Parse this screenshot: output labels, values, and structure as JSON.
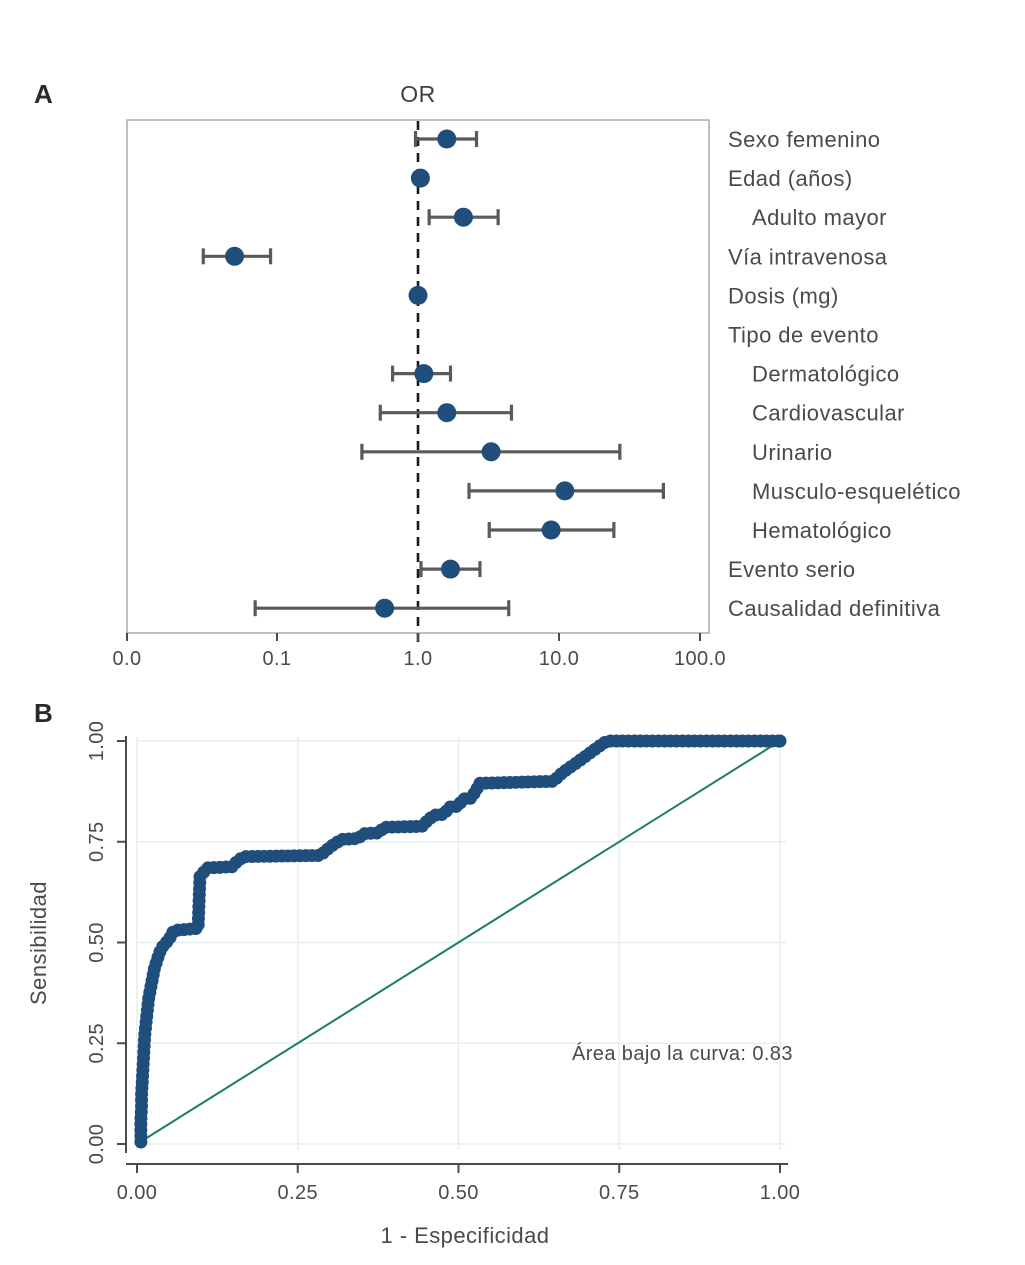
{
  "figure": {
    "description": "Two-panel statistical figure: forest plot of odds ratios (A) and ROC curve (B)"
  },
  "colors": {
    "point_navy": "#1f4e7c",
    "error_bar_gray": "#5a5a5a",
    "reference_dash_black": "#1a1a1a",
    "diagonal_teal": "#1d7a6b",
    "gridline_mint": "#e4f0ee",
    "axis_gray": "#4b4b4b",
    "text_gray": "#4a4a4a",
    "box_border_gray": "#ababab"
  },
  "chart_data": [
    {
      "type": "scatter",
      "subtype": "forest-plot",
      "panel_label": "A",
      "title": "OR",
      "x_scale": "log",
      "reference_line": 1.0,
      "x_ticks": [
        {
          "label": "0.0",
          "value": null
        },
        {
          "label": "0.1",
          "value": 0.1
        },
        {
          "label": "1.0",
          "value": 1.0
        },
        {
          "label": "10.0",
          "value": 10.0
        },
        {
          "label": "100.0",
          "value": 100.0
        }
      ],
      "rows": [
        {
          "label": "Sexo femenino",
          "indent": false,
          "or": 1.6,
          "ci": [
            0.96,
            2.6
          ]
        },
        {
          "label": "Edad (años)",
          "indent": false,
          "or": 1.04,
          "ci": [
            0.99,
            1.1
          ]
        },
        {
          "label": "Adulto mayor",
          "indent": true,
          "or": 2.1,
          "ci": [
            1.2,
            3.7
          ]
        },
        {
          "label": "Vía intravenosa",
          "indent": false,
          "or": 0.05,
          "ci": [
            0.03,
            0.09
          ]
        },
        {
          "label": "Dosis (mg)",
          "indent": false,
          "or": 1.0,
          "ci": [
            0.99,
            1.01
          ]
        },
        {
          "label": "Tipo de evento",
          "indent": false,
          "or": null,
          "ci": null
        },
        {
          "label": "Dermatológico",
          "indent": true,
          "or": 1.1,
          "ci": [
            0.66,
            1.7
          ]
        },
        {
          "label": "Cardiovascular",
          "indent": true,
          "or": 1.6,
          "ci": [
            0.54,
            4.6
          ]
        },
        {
          "label": "Urinario",
          "indent": true,
          "or": 3.3,
          "ci": [
            0.4,
            27
          ]
        },
        {
          "label": "Musculo-esquelético",
          "indent": true,
          "or": 11.0,
          "ci": [
            2.3,
            55
          ]
        },
        {
          "label": "Hematológico",
          "indent": true,
          "or": 8.8,
          "ci": [
            3.2,
            24.5
          ]
        },
        {
          "label": "Evento serio",
          "indent": false,
          "or": 1.7,
          "ci": [
            1.05,
            2.75
          ]
        },
        {
          "label": "Causalidad definitiva",
          "indent": false,
          "or": 0.58,
          "ci": [
            0.07,
            4.4
          ]
        }
      ]
    },
    {
      "type": "line",
      "subtype": "roc-curve",
      "panel_label": "B",
      "xlabel": "1 - Especificidad",
      "ylabel": "Sensibilidad",
      "annotation": "Área bajo la curva: 0.83",
      "auc": 0.83,
      "xlim": [
        0,
        1
      ],
      "ylim": [
        0,
        1
      ],
      "grid": true,
      "x_ticks": [
        {
          "label": "0.00",
          "value": 0.0
        },
        {
          "label": "0.25",
          "value": 0.25
        },
        {
          "label": "0.50",
          "value": 0.5
        },
        {
          "label": "0.75",
          "value": 0.75
        },
        {
          "label": "1.00",
          "value": 1.0
        }
      ],
      "y_ticks": [
        {
          "label": "0.00",
          "value": 0.0
        },
        {
          "label": "0.25",
          "value": 0.25
        },
        {
          "label": "0.50",
          "value": 0.5
        },
        {
          "label": "0.75",
          "value": 0.75
        },
        {
          "label": "1.00",
          "value": 1.0
        }
      ],
      "diagonal": [
        [
          0,
          0
        ],
        [
          1,
          1
        ]
      ],
      "series": [
        {
          "name": "ROC",
          "points": [
            [
              0.006,
              0.005
            ],
            [
              0.006,
              0.03
            ],
            [
              0.006,
              0.06
            ],
            [
              0.007,
              0.09
            ],
            [
              0.007,
              0.12
            ],
            [
              0.008,
              0.15
            ],
            [
              0.009,
              0.18
            ],
            [
              0.01,
              0.21
            ],
            [
              0.011,
              0.24
            ],
            [
              0.012,
              0.27
            ],
            [
              0.014,
              0.3
            ],
            [
              0.016,
              0.33
            ],
            [
              0.018,
              0.36
            ],
            [
              0.021,
              0.385
            ],
            [
              0.024,
              0.41
            ],
            [
              0.027,
              0.435
            ],
            [
              0.031,
              0.455
            ],
            [
              0.035,
              0.475
            ],
            [
              0.04,
              0.49
            ],
            [
              0.045,
              0.5
            ],
            [
              0.05,
              0.505
            ],
            [
              0.053,
              0.52
            ],
            [
              0.058,
              0.53
            ],
            [
              0.095,
              0.535
            ],
            [
              0.098,
              0.665
            ],
            [
              0.104,
              0.675
            ],
            [
              0.11,
              0.685
            ],
            [
              0.148,
              0.688
            ],
            [
              0.156,
              0.702
            ],
            [
              0.166,
              0.713
            ],
            [
              0.285,
              0.716
            ],
            [
              0.296,
              0.731
            ],
            [
              0.308,
              0.746
            ],
            [
              0.32,
              0.756
            ],
            [
              0.344,
              0.758
            ],
            [
              0.352,
              0.77
            ],
            [
              0.376,
              0.772
            ],
            [
              0.384,
              0.786
            ],
            [
              0.443,
              0.788
            ],
            [
              0.452,
              0.803
            ],
            [
              0.462,
              0.816
            ],
            [
              0.477,
              0.818
            ],
            [
              0.486,
              0.836
            ],
            [
              0.499,
              0.838
            ],
            [
              0.507,
              0.856
            ],
            [
              0.519,
              0.858
            ],
            [
              0.527,
              0.876
            ],
            [
              0.533,
              0.895
            ],
            [
              0.648,
              0.9
            ],
            [
              0.657,
              0.915
            ],
            [
              0.669,
              0.93
            ],
            [
              0.682,
              0.944
            ],
            [
              0.694,
              0.958
            ],
            [
              0.706,
              0.972
            ],
            [
              0.717,
              0.985
            ],
            [
              0.728,
              0.997
            ],
            [
              0.736,
              1.0
            ],
            [
              1.0,
              1.0
            ]
          ]
        }
      ]
    }
  ]
}
